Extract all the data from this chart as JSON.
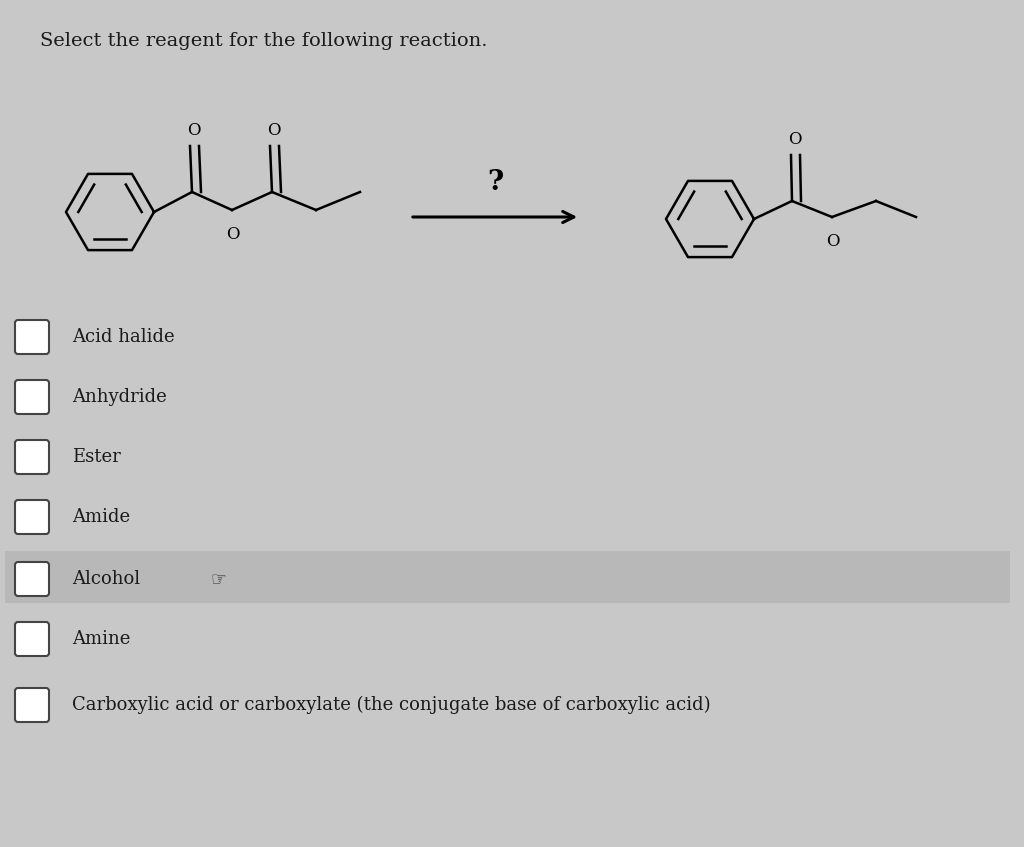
{
  "title": "Select the reagent for the following reaction.",
  "background_color": "#c8c8c8",
  "options": [
    "Acid halide",
    "Anhydride",
    "Ester",
    "Amide",
    "Alcohol",
    "Amine",
    "Carboxylic acid or carboxylate (the conjugate base of carboxylic acid)"
  ],
  "highlighted_option_index": 4,
  "highlight_color": "#b8b8b8",
  "text_color": "#1a1a1a",
  "title_fontsize": 14,
  "option_fontsize": 13
}
